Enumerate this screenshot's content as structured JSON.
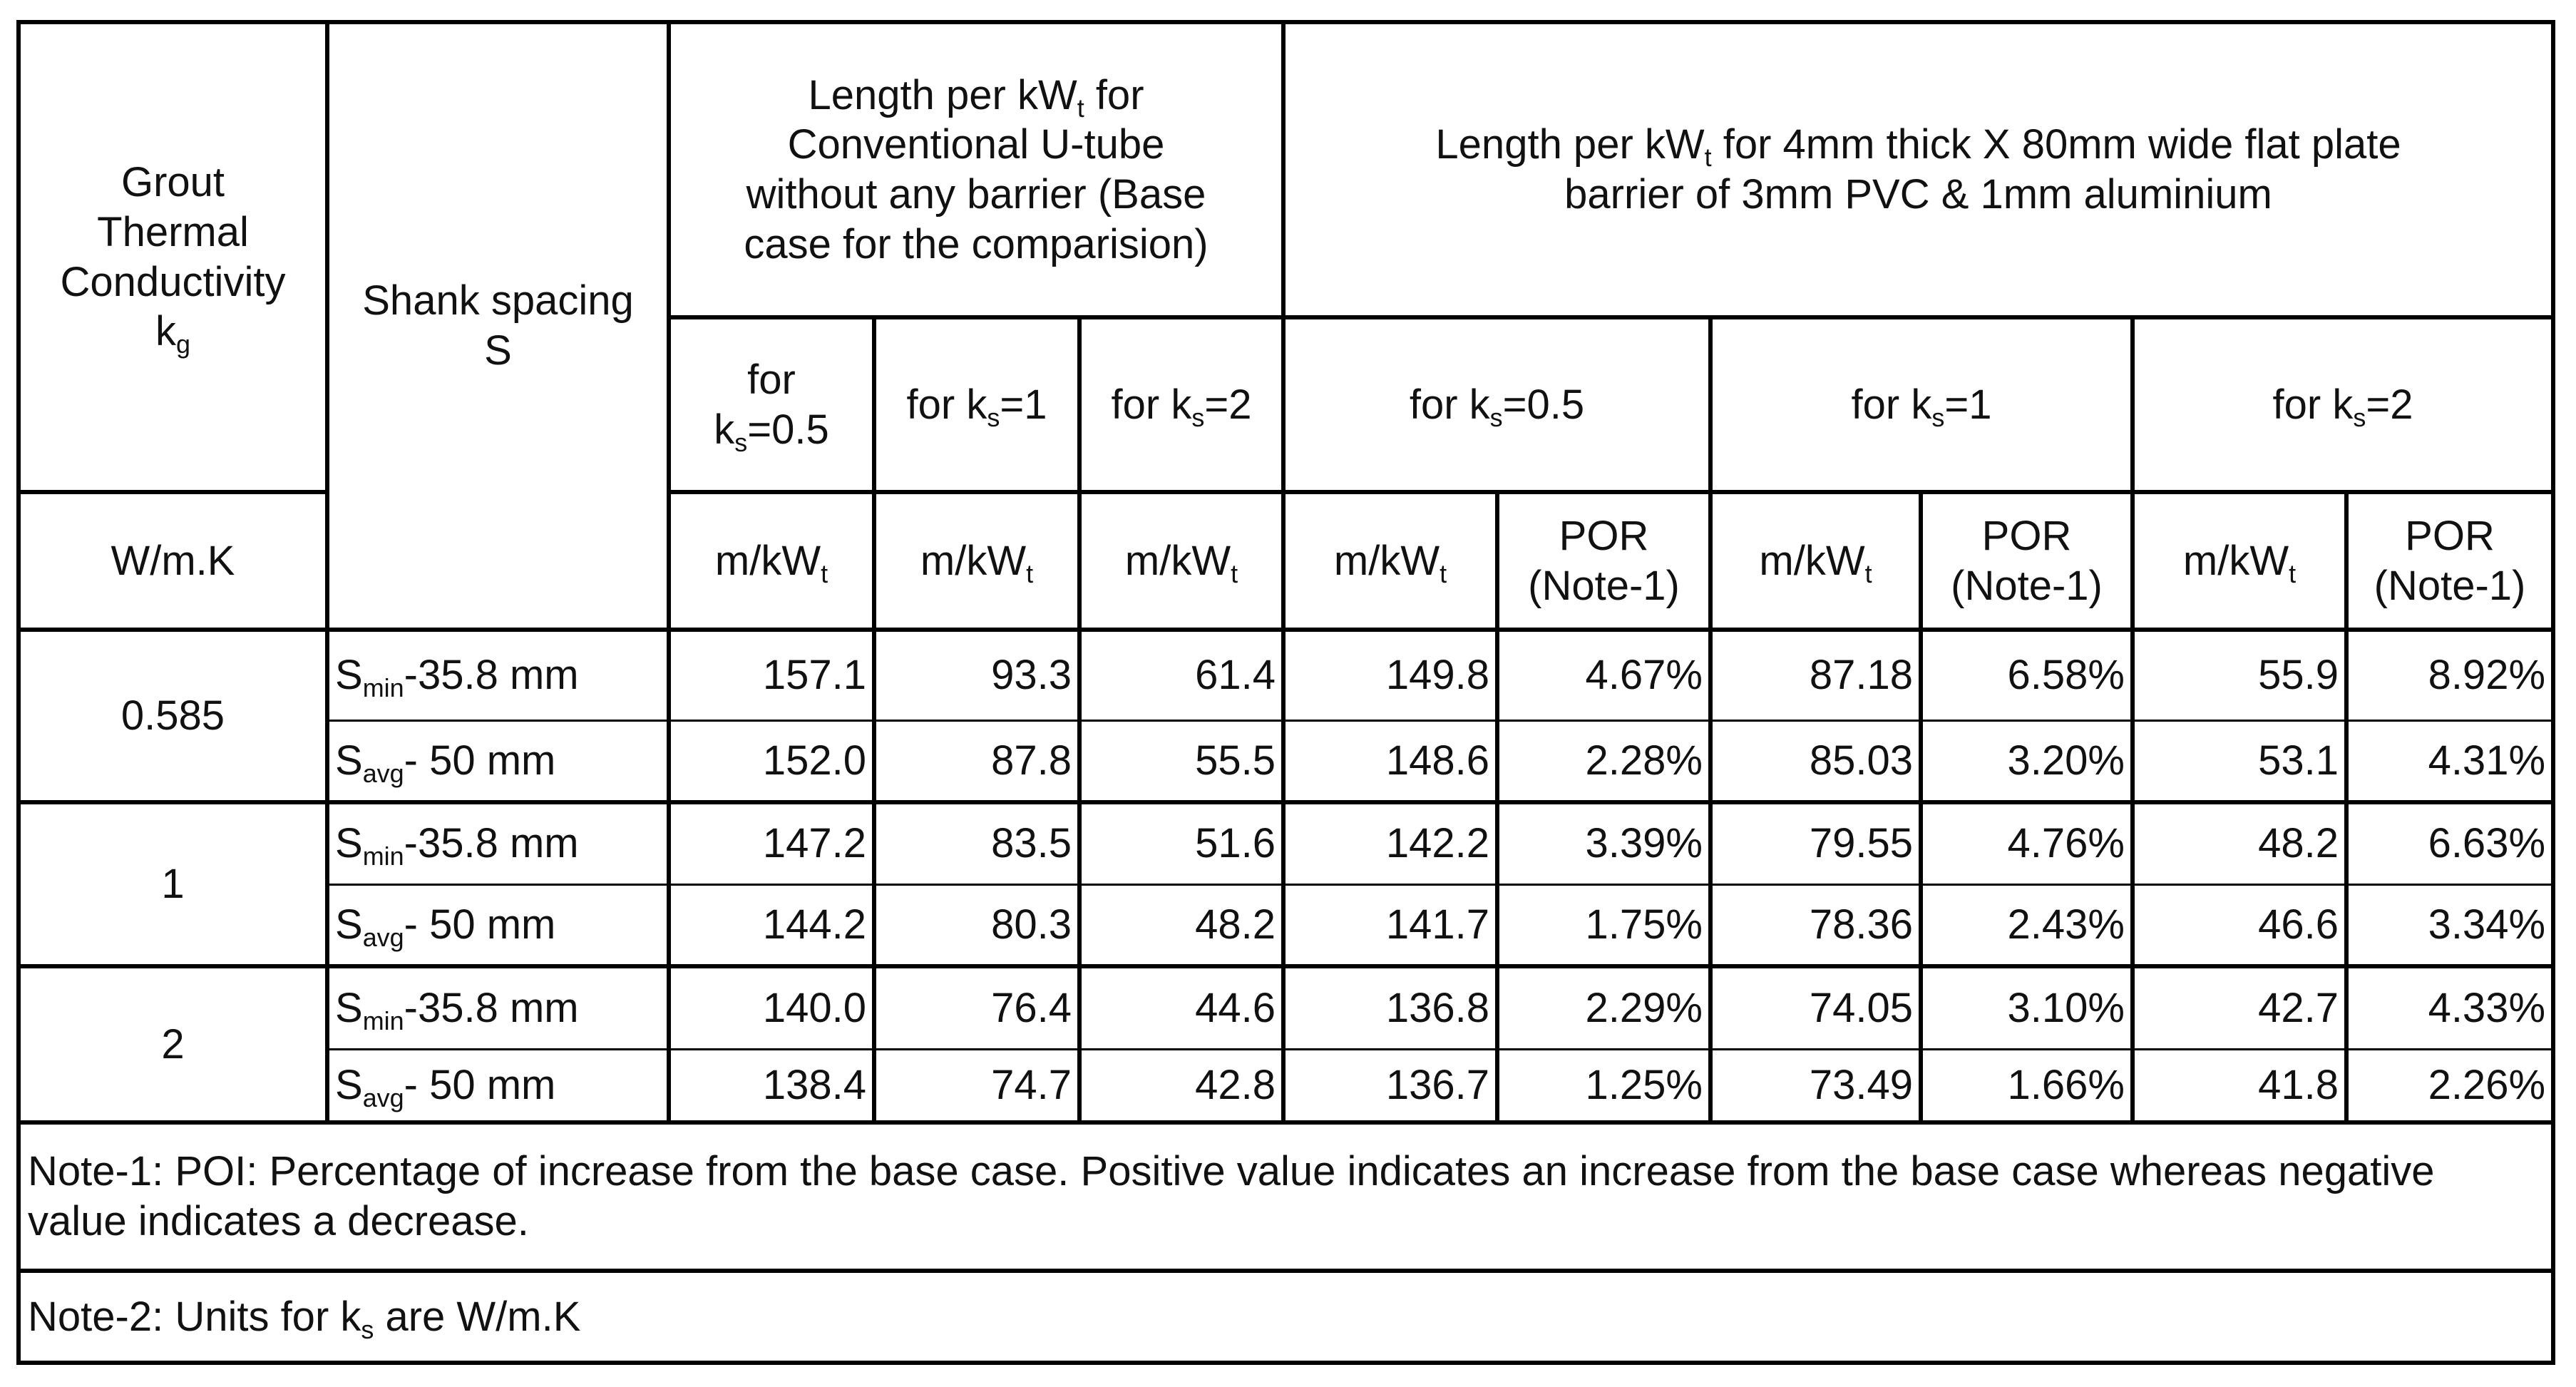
{
  "header": {
    "grout": [
      {
        "text": "Grout\nThermal\nConductivity\nk"
      },
      {
        "sub": "g"
      }
    ],
    "grout_unit": "W/m.K",
    "shank": [
      {
        "text": "Shank spacing\nS"
      }
    ],
    "base": [
      {
        "text": "Length per kW"
      },
      {
        "sub": "t"
      },
      {
        "text": " for\nConventional U-tube\nwithout any barrier (Base\ncase for the comparision)"
      }
    ],
    "barrier": [
      {
        "text": "Length per kW"
      },
      {
        "sub": "t"
      },
      {
        "text": " for 4mm thick X 80mm wide flat plate\nbarrier of 3mm PVC & 1mm aluminium"
      }
    ],
    "base_cols": [
      [
        {
          "text": "for\nk"
        },
        {
          "sub": "s"
        },
        {
          "text": "=0.5"
        }
      ],
      [
        {
          "text": "for k"
        },
        {
          "sub": "s"
        },
        {
          "text": "=1"
        }
      ],
      [
        {
          "text": "for k"
        },
        {
          "sub": "s"
        },
        {
          "text": "=2"
        }
      ]
    ],
    "barrier_cols": [
      [
        {
          "text": "for k"
        },
        {
          "sub": "s"
        },
        {
          "text": "=0.5"
        }
      ],
      [
        {
          "text": "for k"
        },
        {
          "sub": "s"
        },
        {
          "text": "=1"
        }
      ],
      [
        {
          "text": "for k"
        },
        {
          "sub": "s"
        },
        {
          "text": "=2"
        }
      ]
    ],
    "base_units": [
      [
        {
          "text": "m/kW"
        },
        {
          "sub": "t"
        }
      ],
      [
        {
          "text": "m/kW"
        },
        {
          "sub": "t"
        }
      ],
      [
        {
          "text": "m/kW"
        },
        {
          "sub": "t"
        }
      ]
    ],
    "barrier_units": [
      [
        {
          "text": "m/kW"
        },
        {
          "sub": "t"
        }
      ],
      [
        {
          "text": "POR\n(Note-1)"
        }
      ],
      [
        {
          "text": "m/kW"
        },
        {
          "sub": "t"
        }
      ],
      [
        {
          "text": "POR\n(Note-1)"
        }
      ],
      [
        {
          "text": "m/kW"
        },
        {
          "sub": "t"
        }
      ],
      [
        {
          "text": "POR\n(Note-1)"
        }
      ]
    ]
  },
  "rows": [
    {
      "kg": "0.585",
      "items": [
        {
          "s": [
            {
              "text": "S"
            },
            {
              "sub": "min"
            },
            {
              "text": "-35.8 mm"
            }
          ],
          "values": [
            "157.1",
            "93.3",
            "61.4",
            "149.8",
            "4.67%",
            "87.18",
            "6.58%",
            "55.9",
            "8.92%"
          ]
        },
        {
          "s": [
            {
              "text": "S"
            },
            {
              "sub": "avg"
            },
            {
              "text": "- 50 mm"
            }
          ],
          "values": [
            "152.0",
            "87.8",
            "55.5",
            "148.6",
            "2.28%",
            "85.03",
            "3.20%",
            "53.1",
            "4.31%"
          ]
        }
      ]
    },
    {
      "kg": "1",
      "items": [
        {
          "s": [
            {
              "text": "S"
            },
            {
              "sub": "min"
            },
            {
              "text": "-35.8 mm"
            }
          ],
          "values": [
            "147.2",
            "83.5",
            "51.6",
            "142.2",
            "3.39%",
            "79.55",
            "4.76%",
            "48.2",
            "6.63%"
          ]
        },
        {
          "s": [
            {
              "text": "S"
            },
            {
              "sub": "avg"
            },
            {
              "text": "- 50 mm"
            }
          ],
          "values": [
            "144.2",
            "80.3",
            "48.2",
            "141.7",
            "1.75%",
            "78.36",
            "2.43%",
            "46.6",
            "3.34%"
          ]
        }
      ]
    },
    {
      "kg": "2",
      "items": [
        {
          "s": [
            {
              "text": "S"
            },
            {
              "sub": "min"
            },
            {
              "text": "-35.8 mm"
            }
          ],
          "values": [
            "140.0",
            "76.4",
            "44.6",
            "136.8",
            "2.29%",
            "74.05",
            "3.10%",
            "42.7",
            "4.33%"
          ]
        },
        {
          "s": [
            {
              "text": "S"
            },
            {
              "sub": "avg"
            },
            {
              "text": "- 50 mm"
            }
          ],
          "values": [
            "138.4",
            "74.7",
            "42.8",
            "136.7",
            "1.25%",
            "73.49",
            "1.66%",
            "41.8",
            "2.26%"
          ]
        }
      ]
    }
  ],
  "notes": [
    [
      {
        "text": "Note-1: POI: Percentage of increase from the base case. Positive value indicates an increase from the base case whereas negative value indicates a decrease."
      }
    ],
    [
      {
        "text": "Note-2: Units for k"
      },
      {
        "sub": "s"
      },
      {
        "text": " are W/m.K"
      }
    ]
  ]
}
